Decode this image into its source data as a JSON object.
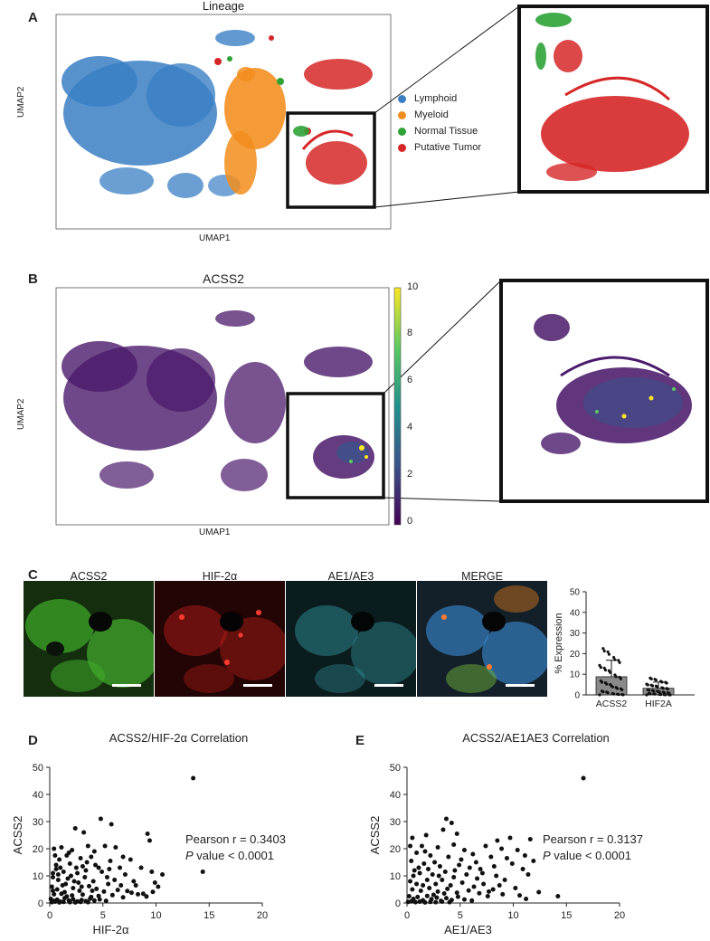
{
  "panels": {
    "a": "A",
    "b": "B",
    "c": "C",
    "d": "D",
    "e": "E"
  },
  "panel_a": {
    "title": "Lineage",
    "xlabel": "UMAP1",
    "ylabel": "UMAP2",
    "legend": [
      {
        "label": "Lymphoid",
        "color": "#3a7fc4"
      },
      {
        "label": "Myeloid",
        "color": "#f28d1c"
      },
      {
        "label": "Normal Tissue",
        "color": "#2ea336"
      },
      {
        "label": "Putative Tumor",
        "color": "#d62728"
      }
    ]
  },
  "panel_b": {
    "title": "ACSS2",
    "xlabel": "UMAP1",
    "ylabel": "UMAP2",
    "colorbar_ticks": [
      "10",
      "8",
      "6",
      "4",
      "2",
      "0"
    ],
    "colorbar_range": [
      0,
      10
    ]
  },
  "panel_c": {
    "images": [
      {
        "label": "ACSS2",
        "tint": "#3fae2a"
      },
      {
        "label": "HIF-2α",
        "tint": "#c8201c"
      },
      {
        "label": "AE1/AE3",
        "tint": "#2f8f95"
      },
      {
        "label": "MERGE",
        "tint": "#3c8ed6"
      }
    ]
  },
  "chart_data": [
    {
      "type": "bar",
      "categories": [
        "ACSS2",
        "HIF2A"
      ],
      "values": [
        8.8,
        3.2
      ],
      "errors": [
        8.0,
        3.0
      ],
      "ylabel": "% Expression",
      "ylim": [
        0,
        50
      ],
      "yticks": [
        "0",
        "10",
        "20",
        "30",
        "40",
        "50"
      ]
    },
    {
      "type": "scatter",
      "title": "ACSS2/HIF-2α Correlation",
      "xlabel": "HIF-2α",
      "ylabel": "ACSS2",
      "xlim": [
        0,
        20
      ],
      "ylim": [
        0,
        50
      ],
      "xticks": [
        "0",
        "5",
        "10",
        "15",
        "20"
      ],
      "yticks": [
        "0",
        "10",
        "20",
        "30",
        "40",
        "50"
      ],
      "annotation_line1": "Pearson r = 0.3403",
      "annotation_p": "P",
      "annotation_line2": " value < 0.0001",
      "points": [
        [
          13.5,
          46
        ],
        [
          14.4,
          11.5
        ],
        [
          4.8,
          31
        ],
        [
          5.8,
          29
        ],
        [
          2.4,
          27.5
        ],
        [
          3.2,
          26
        ],
        [
          9.2,
          25.5
        ],
        [
          9.4,
          23
        ],
        [
          0.4,
          20
        ],
        [
          1.1,
          20.5
        ],
        [
          2.1,
          19.5
        ],
        [
          3.6,
          21
        ],
        [
          4.2,
          19
        ],
        [
          5.2,
          21
        ],
        [
          6.2,
          20.5
        ],
        [
          1.6,
          17.5
        ],
        [
          0.9,
          16
        ],
        [
          2.9,
          16.5
        ],
        [
          3.9,
          17
        ],
        [
          6.9,
          17
        ],
        [
          7.6,
          16
        ],
        [
          0.6,
          14
        ],
        [
          1.9,
          14.5
        ],
        [
          3.1,
          13.5
        ],
        [
          4.6,
          13
        ],
        [
          5.6,
          12.5
        ],
        [
          6.6,
          13
        ],
        [
          8.6,
          13
        ],
        [
          1.3,
          11.5
        ],
        [
          2.6,
          11
        ],
        [
          3.4,
          12
        ],
        [
          4.9,
          11.5
        ],
        [
          5.4,
          9.5
        ],
        [
          7.1,
          10.5
        ],
        [
          9.6,
          11.5
        ],
        [
          10.6,
          10.5
        ],
        [
          0.3,
          9.5
        ],
        [
          0.8,
          8.5
        ],
        [
          1.7,
          9
        ],
        [
          2.3,
          8
        ],
        [
          3.3,
          9.5
        ],
        [
          4.1,
          8
        ],
        [
          6.1,
          8.5
        ],
        [
          7.9,
          8
        ],
        [
          8.1,
          6.5
        ],
        [
          9.9,
          7.5
        ],
        [
          10.2,
          6
        ],
        [
          0.2,
          6
        ],
        [
          0.7,
          5
        ],
        [
          1.2,
          6.5
        ],
        [
          2.2,
          5.5
        ],
        [
          2.8,
          4.5
        ],
        [
          3.7,
          6.2
        ],
        [
          4.4,
          5.2
        ],
        [
          5.1,
          4.2
        ],
        [
          6.4,
          4.8
        ],
        [
          7.3,
          4.4
        ],
        [
          7.7,
          3.8
        ],
        [
          8.3,
          3.2
        ],
        [
          8.8,
          3.4
        ],
        [
          9.1,
          2.4
        ],
        [
          9.7,
          4.1
        ],
        [
          0.4,
          3.2
        ],
        [
          1.1,
          3.4
        ],
        [
          1.6,
          2.4
        ],
        [
          2.1,
          2.8
        ],
        [
          3.1,
          3.1
        ],
        [
          3.9,
          2.2
        ],
        [
          4.6,
          2.6
        ],
        [
          5.9,
          2.9
        ],
        [
          6.9,
          2.1
        ],
        [
          0.1,
          1.5
        ],
        [
          0.4,
          0.8
        ],
        [
          0.7,
          1.2
        ],
        [
          1.0,
          0.5
        ],
        [
          1.4,
          1.8
        ],
        [
          1.8,
          0.9
        ],
        [
          2.2,
          1.4
        ],
        [
          2.6,
          0.6
        ],
        [
          3.0,
          1.1
        ],
        [
          3.4,
          0.7
        ],
        [
          3.8,
          1.6
        ],
        [
          4.2,
          0.9
        ],
        [
          4.7,
          1.3
        ],
        [
          5.3,
          0.8
        ],
        [
          0.2,
          0.3
        ],
        [
          0.5,
          0.5
        ],
        [
          0.9,
          0.2
        ],
        [
          1.3,
          0.4
        ],
        [
          1.9,
          0.3
        ],
        [
          2.4,
          0.2
        ],
        [
          2.9,
          0.4
        ],
        [
          3.6,
          0.3
        ],
        [
          0.3,
          11
        ],
        [
          0.6,
          12.5
        ],
        [
          1.5,
          7
        ],
        [
          2.7,
          7.5
        ],
        [
          3.5,
          15
        ],
        [
          4.3,
          14
        ],
        [
          5.7,
          15.5
        ],
        [
          0.5,
          17.5
        ],
        [
          1.8,
          18.5
        ],
        [
          2.5,
          13
        ],
        [
          0.8,
          10.5
        ],
        [
          1.4,
          4
        ],
        [
          0.3,
          4.5
        ],
        [
          4.0,
          4.5
        ],
        [
          6.7,
          6.5
        ],
        [
          5.5,
          7
        ],
        [
          3.0,
          6
        ],
        [
          2.0,
          10
        ],
        [
          1.0,
          13
        ]
      ]
    },
    {
      "type": "scatter",
      "title": "ACSS2/AE1AE3 Correlation",
      "xlabel": "AE1/AE3",
      "ylabel": "ACSS2",
      "xlim": [
        0,
        20
      ],
      "ylim": [
        0,
        50
      ],
      "xticks": [
        "0",
        "5",
        "10",
        "15",
        "20"
      ],
      "yticks": [
        "0",
        "10",
        "20",
        "30",
        "40",
        "50"
      ],
      "annotation_line1": "Pearson r = 0.3137",
      "annotation_p": "P",
      "annotation_line2": " value < 0.0001",
      "points": [
        [
          16.6,
          46
        ],
        [
          3.7,
          31
        ],
        [
          4.2,
          29.5
        ],
        [
          3.4,
          27
        ],
        [
          1.8,
          25
        ],
        [
          4.7,
          25.5
        ],
        [
          0.5,
          24
        ],
        [
          9.7,
          24
        ],
        [
          11.6,
          23.5
        ],
        [
          8.5,
          23
        ],
        [
          1.4,
          21
        ],
        [
          2.9,
          20.5
        ],
        [
          4.4,
          21.5
        ],
        [
          5.4,
          19.5
        ],
        [
          7.4,
          21
        ],
        [
          8.9,
          20
        ],
        [
          10.4,
          19.5
        ],
        [
          0.9,
          18.5
        ],
        [
          2.2,
          17.5
        ],
        [
          3.9,
          17
        ],
        [
          6.2,
          18
        ],
        [
          7.9,
          17
        ],
        [
          9.4,
          16.5
        ],
        [
          11.9,
          15.5
        ],
        [
          11.1,
          17.5
        ],
        [
          0.4,
          15.5
        ],
        [
          1.6,
          14.5
        ],
        [
          2.6,
          15
        ],
        [
          3.1,
          13.5
        ],
        [
          4.9,
          14
        ],
        [
          5.9,
          13
        ],
        [
          6.9,
          12.5
        ],
        [
          8.2,
          13.5
        ],
        [
          9.9,
          14.5
        ],
        [
          10.9,
          12.5
        ],
        [
          0.7,
          12
        ],
        [
          1.2,
          11
        ],
        [
          2.4,
          10.5
        ],
        [
          3.6,
          11.5
        ],
        [
          4.4,
          9.5
        ],
        [
          5.6,
          10.5
        ],
        [
          6.6,
          9
        ],
        [
          8.4,
          10
        ],
        [
          9.2,
          8.5
        ],
        [
          11.4,
          10.5
        ],
        [
          12.4,
          4
        ],
        [
          14.2,
          2.5
        ],
        [
          0.3,
          8
        ],
        [
          0.9,
          7
        ],
        [
          1.9,
          8.5
        ],
        [
          2.7,
          7
        ],
        [
          3.3,
          8.5
        ],
        [
          4.1,
          6.5
        ],
        [
          5.2,
          7.5
        ],
        [
          6.3,
          6
        ],
        [
          7.2,
          7
        ],
        [
          8.7,
          6.5
        ],
        [
          10.2,
          5.5
        ],
        [
          0.5,
          5
        ],
        [
          1.3,
          4.5
        ],
        [
          2.1,
          5.5
        ],
        [
          2.9,
          4.2
        ],
        [
          3.8,
          5.2
        ],
        [
          4.7,
          3.8
        ],
        [
          5.8,
          4.6
        ],
        [
          6.8,
          3.6
        ],
        [
          7.7,
          4.2
        ],
        [
          9.0,
          3.2
        ],
        [
          10.6,
          2.8
        ],
        [
          11.2,
          1.5
        ],
        [
          0.2,
          2.5
        ],
        [
          0.6,
          1.5
        ],
        [
          1.0,
          2.2
        ],
        [
          1.5,
          1.0
        ],
        [
          1.9,
          2.6
        ],
        [
          2.3,
          1.4
        ],
        [
          2.8,
          2.0
        ],
        [
          3.2,
          0.8
        ],
        [
          3.7,
          1.8
        ],
        [
          4.2,
          1.1
        ],
        [
          4.8,
          2.3
        ],
        [
          5.4,
          1.3
        ],
        [
          6.1,
          0.9
        ],
        [
          0.1,
          0.4
        ],
        [
          0.4,
          0.6
        ],
        [
          0.8,
          0.3
        ],
        [
          1.2,
          0.5
        ],
        [
          1.7,
          0.2
        ],
        [
          2.2,
          0.4
        ],
        [
          2.7,
          0.3
        ],
        [
          3.3,
          0.5
        ],
        [
          4.0,
          0.3
        ],
        [
          1.1,
          13
        ],
        [
          2.0,
          12.5
        ],
        [
          3.0,
          10
        ],
        [
          0.6,
          10
        ],
        [
          1.5,
          6.5
        ],
        [
          2.5,
          3
        ],
        [
          4.5,
          12
        ],
        [
          5.1,
          16
        ],
        [
          6.5,
          15
        ],
        [
          7.1,
          11
        ],
        [
          7.6,
          2.5
        ],
        [
          8.1,
          5
        ],
        [
          3.5,
          3.5
        ],
        [
          0.3,
          21
        ],
        [
          1.7,
          19
        ]
      ]
    }
  ]
}
